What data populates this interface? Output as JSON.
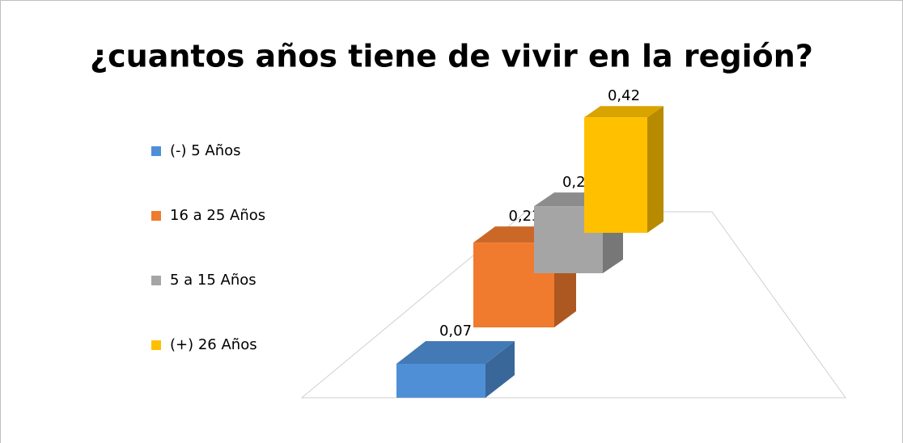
{
  "chart_data": {
    "type": "bar3d",
    "title": "¿cuantos años tiene de vivir en la región?",
    "categories": [
      "(-) 5 Años",
      "16 a 25 Años",
      "5 a 15 Años",
      "(+) 26 Años"
    ],
    "values": [
      0.07,
      0.23,
      0.28,
      0.42
    ],
    "value_labels": [
      "0,07",
      "0,23",
      "0,28",
      "0,42"
    ],
    "colors": [
      "#4f8fd6",
      "#f07a2e",
      "#a5a5a5",
      "#ffc000"
    ],
    "legend": "left"
  }
}
